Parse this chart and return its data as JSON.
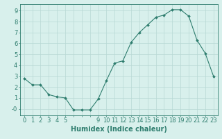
{
  "x_values": [
    0,
    1,
    2,
    3,
    4,
    5,
    6,
    7,
    8,
    9,
    10,
    11,
    12,
    13,
    14,
    15,
    16,
    17,
    18,
    19,
    20,
    21,
    22,
    23
  ],
  "y_values": [
    2.8,
    2.2,
    2.2,
    1.3,
    1.1,
    1.0,
    -0.1,
    -0.1,
    -0.1,
    0.9,
    2.6,
    4.2,
    4.4,
    6.1,
    7.0,
    7.7,
    8.4,
    8.6,
    9.1,
    9.1,
    8.5,
    6.3,
    5.1,
    3.0
  ],
  "line_color": "#2e7d6e",
  "marker": "D",
  "marker_size": 2.0,
  "bg_color": "#d8f0ec",
  "grid_color": "#b8d8d4",
  "grid_color_minor": "#c8e4e0",
  "axis_color": "#2e7d6e",
  "xlabel": "Humidex (Indice chaleur)",
  "xlabel_fontsize": 7,
  "ylim": [
    -0.6,
    9.6
  ],
  "xlim": [
    -0.5,
    23.5
  ],
  "yticks": [
    0,
    1,
    2,
    3,
    4,
    5,
    6,
    7,
    8,
    9
  ],
  "tick_fontsize": 6
}
